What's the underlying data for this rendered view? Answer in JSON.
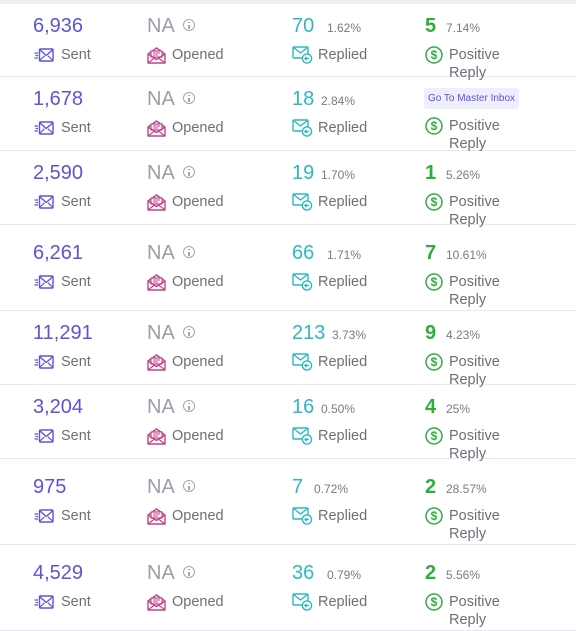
{
  "labels": {
    "sent": "Sent",
    "opened": "Opened",
    "replied": "Replied",
    "positive_reply": "Positive Reply",
    "na": "NA"
  },
  "master_inbox_label": "Go To Master Inbox",
  "colors": {
    "sent": "#5b55d6",
    "opened_icon": "#c2458c",
    "replied": "#2fb7c2",
    "positive": "#2eae3e",
    "na": "#9b9ea8"
  },
  "icons": {
    "sent": "send-mail-icon",
    "opened": "open-envelope-icon",
    "replied": "reply-mail-icon",
    "positive": "dollar-circle-icon",
    "info": "info-icon"
  },
  "rows": [
    {
      "sent": "6,936",
      "opened": "NA",
      "replied": "70",
      "replied_pct": "1.62%",
      "positive": "5",
      "positive_pct": "7.14%"
    },
    {
      "sent": "1,678",
      "opened": "NA",
      "replied": "18",
      "replied_pct": "2.84%",
      "positive": "",
      "positive_pct": ""
    },
    {
      "sent": "2,590",
      "opened": "NA",
      "replied": "19",
      "replied_pct": "1.70%",
      "positive": "1",
      "positive_pct": "5.26%"
    },
    {
      "sent": "6,261",
      "opened": "NA",
      "replied": "66",
      "replied_pct": "1.71%",
      "positive": "7",
      "positive_pct": "10.61%"
    },
    {
      "sent": "11,291",
      "opened": "NA",
      "replied": "213",
      "replied_pct": "3.73%",
      "positive": "9",
      "positive_pct": "4.23%"
    },
    {
      "sent": "3,204",
      "opened": "NA",
      "replied": "16",
      "replied_pct": "0.50%",
      "positive": "4",
      "positive_pct": "25%"
    },
    {
      "sent": "975",
      "opened": "NA",
      "replied": "7",
      "replied_pct": "0.72%",
      "positive": "2",
      "positive_pct": "28.57%"
    },
    {
      "sent": "4,529",
      "opened": "NA",
      "replied": "36",
      "replied_pct": "0.79%",
      "positive": "2",
      "positive_pct": "5.56%"
    }
  ]
}
